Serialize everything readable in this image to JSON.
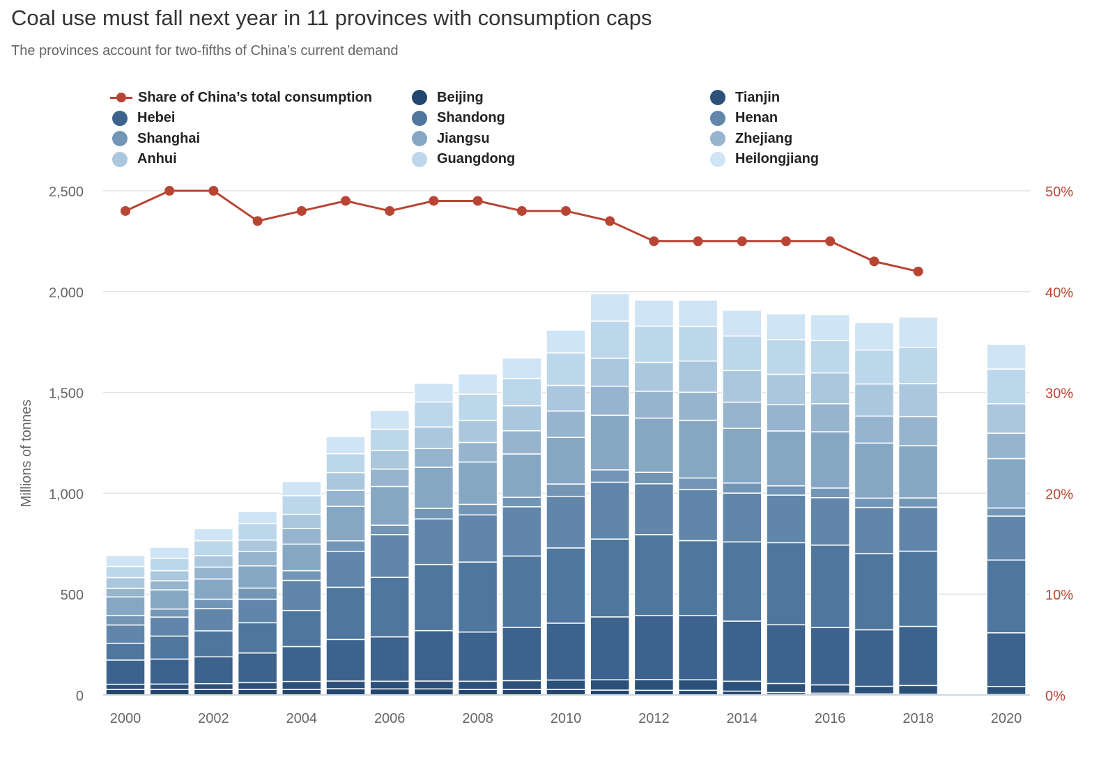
{
  "header": {
    "title": "Coal use must fall next year in 11 provinces with consumption caps",
    "subtitle": "The provinces account for two-fifths of China’s current demand"
  },
  "colors": {
    "line": "#b84533",
    "grid": "#dfe3e8",
    "axis_text": "#666666",
    "right_axis_text": "#b84533",
    "provinces": {
      "Beijing": "#23466e",
      "Tianjin": "#2b5079",
      "Hebei": "#3c628d",
      "Shandong": "#4f779d",
      "Henan": "#6286aa",
      "Shanghai": "#7396b6",
      "Jiangsu": "#86a7c3",
      "Zhejiang": "#97b4ce",
      "Anhui": "#aac7de",
      "Guangdong": "#bdd7ea",
      "Heilongjiang": "#cfe4f5"
    }
  },
  "legend": [
    {
      "label": "Share of China’s total consumption",
      "kind": "line",
      "color_key": "line"
    },
    {
      "label": "Beijing",
      "kind": "dot",
      "color_key": "Beijing"
    },
    {
      "label": "Tianjin",
      "kind": "dot",
      "color_key": "Tianjin"
    },
    {
      "label": "Hebei",
      "kind": "dot",
      "color_key": "Hebei"
    },
    {
      "label": "Shandong",
      "kind": "dot",
      "color_key": "Shandong"
    },
    {
      "label": "Henan",
      "kind": "dot",
      "color_key": "Henan"
    },
    {
      "label": "Shanghai",
      "kind": "dot",
      "color_key": "Shanghai"
    },
    {
      "label": "Jiangsu",
      "kind": "dot",
      "color_key": "Jiangsu"
    },
    {
      "label": "Zhejiang",
      "kind": "dot",
      "color_key": "Zhejiang"
    },
    {
      "label": "Anhui",
      "kind": "dot",
      "color_key": "Anhui"
    },
    {
      "label": "Guangdong",
      "kind": "dot",
      "color_key": "Guangdong"
    },
    {
      "label": "Heilongjiang",
      "kind": "dot",
      "color_key": "Heilongjiang"
    }
  ],
  "chart_data": {
    "type": "bar",
    "stacked": true,
    "title": "Coal use must fall next year in 11 provinces with consumption caps",
    "subtitle": "The provinces account for two-fifths of China’s current demand",
    "ylabel": "Millions of tonnes",
    "ylim": [
      0,
      2500
    ],
    "y_ticks": [
      "0",
      "500",
      "1,000",
      "1,500",
      "2,000",
      "2,500"
    ],
    "y_tick_values": [
      0,
      500,
      1000,
      1500,
      2000,
      2500
    ],
    "y2lim": [
      0,
      50
    ],
    "y2_ticks": [
      "0%",
      "10%",
      "20%",
      "30%",
      "40%",
      "50%"
    ],
    "y2_tick_values": [
      0,
      10,
      20,
      30,
      40,
      50
    ],
    "x_ticks": [
      "2000",
      "2002",
      "2004",
      "2006",
      "2008",
      "2010",
      "2012",
      "2014",
      "2016",
      "2018",
      "2020"
    ],
    "x": [
      2000,
      2001,
      2002,
      2003,
      2004,
      2005,
      2006,
      2007,
      2008,
      2009,
      2010,
      2011,
      2012,
      2013,
      2014,
      2015,
      2016,
      2017,
      2018,
      2019,
      2020
    ],
    "series": [
      {
        "name": "Beijing",
        "values": [
          27,
          27,
          27,
          27,
          27,
          31,
          30,
          30,
          27,
          27,
          27,
          24,
          23,
          23,
          19,
          12,
          9,
          5,
          3,
          null,
          2
        ]
      },
      {
        "name": "Tianjin",
        "values": [
          26,
          27,
          29,
          34,
          40,
          38,
          38,
          39,
          41,
          44,
          47,
          51,
          53,
          52,
          49,
          45,
          41,
          38,
          44,
          null,
          40
        ]
      },
      {
        "name": "Hebei",
        "values": [
          120,
          124,
          133,
          147,
          173,
          206,
          220,
          250,
          244,
          264,
          282,
          312,
          317,
          318,
          298,
          291,
          284,
          280,
          293,
          null,
          266
        ]
      },
      {
        "name": "Shandong",
        "values": [
          83,
          114,
          129,
          150,
          179,
          259,
          295,
          328,
          347,
          354,
          373,
          386,
          402,
          372,
          393,
          407,
          409,
          378,
          373,
          null,
          361
        ]
      },
      {
        "name": "Henan",
        "values": [
          91,
          94,
          110,
          117,
          149,
          178,
          212,
          226,
          234,
          244,
          256,
          282,
          252,
          254,
          242,
          236,
          235,
          229,
          218,
          null,
          218
        ]
      },
      {
        "name": "Shanghai",
        "values": [
          46,
          40,
          47,
          55,
          48,
          52,
          47,
          52,
          52,
          47,
          61,
          61,
          57,
          57,
          50,
          46,
          48,
          46,
          46,
          null,
          40
        ]
      },
      {
        "name": "Jiangsu",
        "values": [
          93,
          95,
          100,
          110,
          132,
          171,
          192,
          204,
          210,
          215,
          231,
          271,
          269,
          286,
          271,
          272,
          279,
          273,
          259,
          null,
          245
        ]
      },
      {
        "name": "Zhejiang",
        "values": [
          42,
          45,
          59,
          72,
          78,
          80,
          86,
          93,
          97,
          115,
          131,
          144,
          133,
          139,
          130,
          131,
          139,
          134,
          144,
          null,
          126
        ]
      },
      {
        "name": "Anhui",
        "values": [
          54,
          50,
          57,
          56,
          70,
          88,
          92,
          107,
          110,
          124,
          127,
          139,
          143,
          155,
          157,
          150,
          153,
          159,
          164,
          null,
          146
        ]
      },
      {
        "name": "Guangdong",
        "values": [
          55,
          62,
          74,
          82,
          92,
          93,
          106,
          124,
          129,
          135,
          161,
          184,
          180,
          172,
          171,
          172,
          160,
          168,
          180,
          null,
          172
        ]
      },
      {
        "name": "Heilongjiang",
        "values": [
          54,
          54,
          59,
          60,
          70,
          85,
          93,
          93,
          101,
          102,
          113,
          136,
          129,
          130,
          128,
          128,
          129,
          136,
          150,
          null,
          123
        ]
      }
    ],
    "line_series": {
      "name": "Share of China’s total consumption",
      "axis": "right",
      "unit": "%",
      "x": [
        2000,
        2001,
        2002,
        2003,
        2004,
        2005,
        2006,
        2007,
        2008,
        2009,
        2010,
        2011,
        2012,
        2013,
        2014,
        2015,
        2016,
        2017,
        2018
      ],
      "values": [
        48,
        50,
        50,
        47,
        48,
        49,
        48,
        49,
        49,
        48,
        48,
        47,
        45,
        45,
        45,
        45,
        45,
        43,
        42
      ]
    },
    "grid": true,
    "legend_position": "top"
  }
}
